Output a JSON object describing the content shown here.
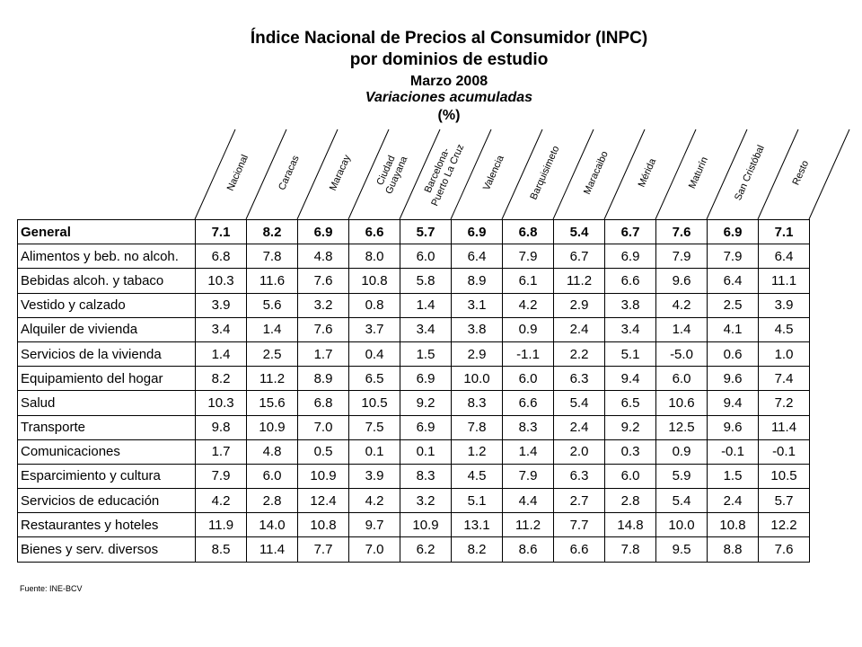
{
  "title": {
    "line1": "Índice Nacional de Precios al Consumidor (INPC)",
    "line2": "por dominios de estudio",
    "line3": "Marzo 2008",
    "line4": "Variaciones acumuladas",
    "line5": "(%)"
  },
  "columns": [
    [
      "Nacional"
    ],
    [
      "Caracas"
    ],
    [
      "Maracay"
    ],
    [
      "Ciudad",
      "Guayana"
    ],
    [
      "Barcelona-",
      "Puerto La Cruz"
    ],
    [
      "Valencia"
    ],
    [
      "Barquisimeto"
    ],
    [
      "Maracaibo"
    ],
    [
      "Mérida"
    ],
    [
      "Maturín"
    ],
    [
      "San Cristóbal"
    ],
    [
      "Resto"
    ]
  ],
  "rows": [
    {
      "label": "General",
      "bold": true,
      "values": [
        "7.1",
        "8.2",
        "6.9",
        "6.6",
        "5.7",
        "6.9",
        "6.8",
        "5.4",
        "6.7",
        "7.6",
        "6.9",
        "7.1"
      ]
    },
    {
      "label": "Alimentos y beb. no alcoh.",
      "values": [
        "6.8",
        "7.8",
        "4.8",
        "8.0",
        "6.0",
        "6.4",
        "7.9",
        "6.7",
        "6.9",
        "7.9",
        "7.9",
        "6.4"
      ]
    },
    {
      "label": "Bebidas alcoh. y tabaco",
      "values": [
        "10.3",
        "11.6",
        "7.6",
        "10.8",
        "5.8",
        "8.9",
        "6.1",
        "11.2",
        "6.6",
        "9.6",
        "6.4",
        "11.1"
      ]
    },
    {
      "label": "Vestido y calzado",
      "values": [
        "3.9",
        "5.6",
        "3.2",
        "0.8",
        "1.4",
        "3.1",
        "4.2",
        "2.9",
        "3.8",
        "4.2",
        "2.5",
        "3.9"
      ]
    },
    {
      "label": "Alquiler de vivienda",
      "values": [
        "3.4",
        "1.4",
        "7.6",
        "3.7",
        "3.4",
        "3.8",
        "0.9",
        "2.4",
        "3.4",
        "1.4",
        "4.1",
        "4.5"
      ]
    },
    {
      "label": "Servicios de la vivienda",
      "values": [
        "1.4",
        "2.5",
        "1.7",
        "0.4",
        "1.5",
        "2.9",
        "-1.1",
        "2.2",
        "5.1",
        "-5.0",
        "0.6",
        "1.0"
      ]
    },
    {
      "label": "Equipamiento del hogar",
      "values": [
        "8.2",
        "11.2",
        "8.9",
        "6.5",
        "6.9",
        "10.0",
        "6.0",
        "6.3",
        "9.4",
        "6.0",
        "9.6",
        "7.4"
      ]
    },
    {
      "label": "Salud",
      "values": [
        "10.3",
        "15.6",
        "6.8",
        "10.5",
        "9.2",
        "8.3",
        "6.6",
        "5.4",
        "6.5",
        "10.6",
        "9.4",
        "7.2"
      ]
    },
    {
      "label": "Transporte",
      "values": [
        "9.8",
        "10.9",
        "7.0",
        "7.5",
        "6.9",
        "7.8",
        "8.3",
        "2.4",
        "9.2",
        "12.5",
        "9.6",
        "11.4"
      ]
    },
    {
      "label": "Comunicaciones",
      "values": [
        "1.7",
        "4.8",
        "0.5",
        "0.1",
        "0.1",
        "1.2",
        "1.4",
        "2.0",
        "0.3",
        "0.9",
        "-0.1",
        "-0.1"
      ]
    },
    {
      "label": "Esparcimiento y cultura",
      "values": [
        "7.9",
        "6.0",
        "10.9",
        "3.9",
        "8.3",
        "4.5",
        "7.9",
        "6.3",
        "6.0",
        "5.9",
        "1.5",
        "10.5"
      ]
    },
    {
      "label": "Servicios de educación",
      "values": [
        "4.2",
        "2.8",
        "12.4",
        "4.2",
        "3.2",
        "5.1",
        "4.4",
        "2.7",
        "2.8",
        "5.4",
        "2.4",
        "5.7"
      ]
    },
    {
      "label": "Restaurantes y hoteles",
      "values": [
        "11.9",
        "14.0",
        "10.8",
        "9.7",
        "10.9",
        "13.1",
        "11.2",
        "7.7",
        "14.8",
        "10.0",
        "10.8",
        "12.2"
      ]
    },
    {
      "label": "Bienes y serv. diversos",
      "values": [
        "8.5",
        "11.4",
        "7.7",
        "7.0",
        "6.2",
        "8.2",
        "8.6",
        "6.6",
        "7.8",
        "9.5",
        "8.8",
        "7.6"
      ]
    }
  ],
  "source": "Fuente: INE-BCV"
}
